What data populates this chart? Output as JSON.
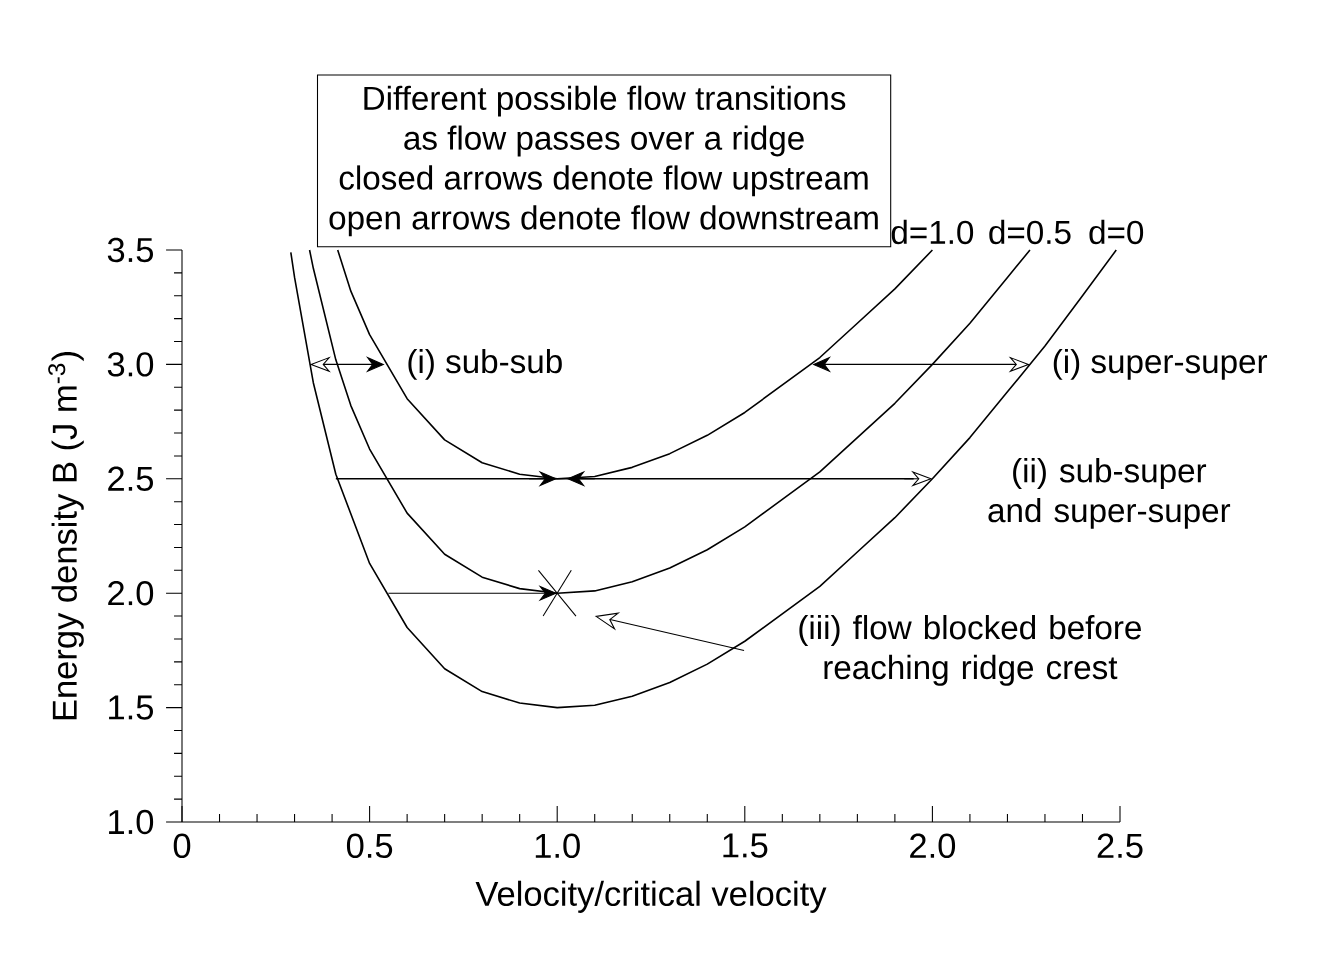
{
  "chart_data": {
    "type": "line",
    "xlabel": "Velocity/critical velocity",
    "ylabel": "Energy density B (J m$^{-3}$)",
    "xlim": [
      0,
      2.5
    ],
    "ylim": [
      1.0,
      3.5
    ],
    "xticks": [
      0,
      0.5,
      {
        "value": 1,
        "label": "1.0"
      },
      1.5,
      {
        "value": 2,
        "label": "2.0"
      },
      2.5
    ],
    "yticks": [
      {
        "value": 1,
        "label": "1.0"
      },
      1.5,
      {
        "value": 2,
        "label": "2.0"
      },
      2.5,
      {
        "value": 3,
        "label": "3.0"
      },
      3.5
    ],
    "grid": false,
    "legend": false,
    "series": [
      {
        "name": "d=1.0",
        "color": "#000000",
        "x": [
          0.415,
          0.45,
          0.5,
          0.6,
          0.7,
          0.8,
          0.9,
          1.0,
          1.1,
          1.2,
          1.3,
          1.4,
          1.5,
          1.6,
          1.7,
          1.8,
          1.9,
          2.0
        ],
        "values": [
          3.5,
          3.32,
          3.13,
          2.85,
          2.67,
          2.57,
          2.52,
          2.5,
          2.51,
          2.55,
          2.61,
          2.69,
          2.79,
          2.91,
          3.03,
          3.18,
          3.33,
          3.5
        ]
      },
      {
        "name": "d=0.5",
        "color": "#000000",
        "x": [
          0.34,
          0.35,
          0.41,
          0.45,
          0.5,
          0.6,
          0.7,
          0.8,
          0.9,
          1.0,
          1.1,
          1.2,
          1.3,
          1.4,
          1.5,
          1.6,
          1.7,
          1.8,
          1.9,
          2.0,
          2.1,
          2.2,
          2.26
        ],
        "values": [
          3.5,
          3.42,
          3.02,
          2.82,
          2.63,
          2.35,
          2.17,
          2.07,
          2.02,
          2.0,
          2.01,
          2.05,
          2.11,
          2.19,
          2.29,
          2.41,
          2.53,
          2.68,
          2.83,
          3.0,
          3.18,
          3.38,
          3.5
        ]
      },
      {
        "name": "d=0",
        "color": "#000000",
        "x": [
          0.29,
          0.3,
          0.35,
          0.41,
          0.5,
          0.6,
          0.7,
          0.8,
          0.9,
          1.0,
          1.1,
          1.2,
          1.3,
          1.4,
          1.5,
          1.6,
          1.7,
          1.8,
          1.9,
          2.0,
          2.1,
          2.2,
          2.3,
          2.4,
          2.49
        ],
        "values": [
          3.49,
          3.38,
          2.92,
          2.52,
          2.13,
          1.85,
          1.67,
          1.57,
          1.52,
          1.5,
          1.51,
          1.55,
          1.61,
          1.69,
          1.79,
          1.91,
          2.03,
          2.18,
          2.33,
          2.5,
          2.68,
          2.88,
          3.08,
          3.3,
          3.5
        ]
      }
    ],
    "annotations": [
      "Different possible flow transitions",
      "as flow passes over a ridge",
      "closed arrows denote flow upstream",
      "open arrows denote flow downstream",
      {
        "text": "(i) sub-sub",
        "x": 0.54,
        "y": 3.0
      },
      {
        "text": "(i) super-super",
        "x": 2.26,
        "y": 3.0
      },
      {
        "text": "(ii) sub-super and super-super",
        "x": 2.0,
        "y": 2.5
      },
      "(iii) flow blocked before reaching ridge crest"
    ]
  }
}
